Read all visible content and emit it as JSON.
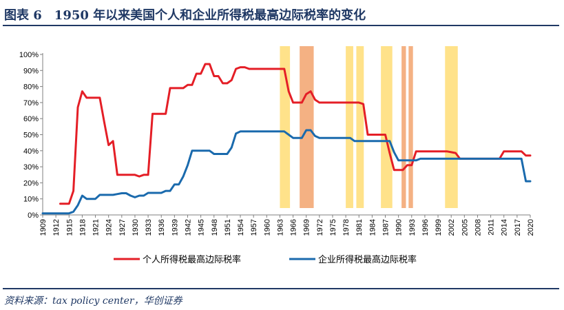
{
  "header": {
    "title": "图表 6　1950 年以来美国个人和企业所得税最高边际税率的变化"
  },
  "footer": {
    "source": "资料来源：tax policy center，华创证券"
  },
  "colors": {
    "title": "#1f3864",
    "individual": "#e41e26",
    "corporate": "#1a6aad",
    "recession_light": "#ffe28a",
    "recession_dark": "#f4b183"
  },
  "chart_data": {
    "type": "line",
    "xlim": [
      1909,
      2020
    ],
    "ylim": [
      0,
      100
    ],
    "x_ticks": [
      1909,
      1912,
      1915,
      1918,
      1921,
      1924,
      1927,
      1930,
      1933,
      1936,
      1939,
      1942,
      1945,
      1948,
      1951,
      1954,
      1957,
      1960,
      1963,
      1966,
      1969,
      1972,
      1975,
      1978,
      1981,
      1984,
      1987,
      1990,
      1993,
      1996,
      1999,
      2002,
      2005,
      2008,
      2011,
      2014,
      2017,
      2020
    ],
    "y_ticks": [
      "0%",
      "10%",
      "20%",
      "30%",
      "40%",
      "50%",
      "60%",
      "70%",
      "80%",
      "90%",
      "100%"
    ],
    "legend_position": "bottom",
    "shaded_periods": [
      {
        "start": 1963.0,
        "end": 1965.3,
        "shade": "light"
      },
      {
        "start": 1967.5,
        "end": 1970.7,
        "shade": "dark"
      },
      {
        "start": 1978.0,
        "end": 1979.7,
        "shade": "light"
      },
      {
        "start": 1980.4,
        "end": 1982.1,
        "shade": "light"
      },
      {
        "start": 1986.0,
        "end": 1988.6,
        "shade": "light"
      },
      {
        "start": 1990.7,
        "end": 1991.7,
        "shade": "dark"
      },
      {
        "start": 1992.3,
        "end": 1993.3,
        "shade": "dark"
      },
      {
        "start": 2000.6,
        "end": 2003.5,
        "shade": "light"
      }
    ],
    "series": [
      {
        "name": "个人所得税最高边际税率",
        "color_key": "individual",
        "points": [
          [
            1913,
            7
          ],
          [
            1915,
            7
          ],
          [
            1916,
            15
          ],
          [
            1917,
            67
          ],
          [
            1918,
            77
          ],
          [
            1919,
            73
          ],
          [
            1922,
            73
          ],
          [
            1923,
            58
          ],
          [
            1924,
            43.5
          ],
          [
            1925,
            46
          ],
          [
            1926,
            25
          ],
          [
            1930,
            25
          ],
          [
            1931,
            24
          ],
          [
            1932,
            25
          ],
          [
            1933,
            25
          ],
          [
            1934,
            63
          ],
          [
            1936,
            63
          ],
          [
            1937,
            63
          ],
          [
            1938,
            79
          ],
          [
            1941,
            79
          ],
          [
            1942,
            81
          ],
          [
            1943,
            81
          ],
          [
            1944,
            88
          ],
          [
            1945,
            88
          ],
          [
            1946,
            94
          ],
          [
            1947,
            94
          ],
          [
            1948,
            86.5
          ],
          [
            1949,
            86.5
          ],
          [
            1950,
            82
          ],
          [
            1951,
            82
          ],
          [
            1952,
            84
          ],
          [
            1953,
            91
          ],
          [
            1954,
            92
          ],
          [
            1955,
            92
          ],
          [
            1956,
            91
          ],
          [
            1964,
            91
          ],
          [
            1965,
            77
          ],
          [
            1966,
            70
          ],
          [
            1968,
            70
          ],
          [
            1969,
            75.3
          ],
          [
            1970,
            77
          ],
          [
            1971,
            71.8
          ],
          [
            1972,
            70
          ],
          [
            1981,
            70
          ],
          [
            1982,
            69.1
          ],
          [
            1983,
            50
          ],
          [
            1987,
            50
          ],
          [
            1988,
            38.5
          ],
          [
            1989,
            28
          ],
          [
            1991,
            28
          ],
          [
            1992,
            31
          ],
          [
            1993,
            31
          ],
          [
            1994,
            39.6
          ],
          [
            2001,
            39.6
          ],
          [
            2002,
            39.1
          ],
          [
            2003,
            38.6
          ],
          [
            2004,
            35
          ],
          [
            2013,
            35
          ],
          [
            2014,
            39.6
          ],
          [
            2018,
            39.6
          ],
          [
            2019,
            37
          ],
          [
            2020,
            37
          ]
        ]
      },
      {
        "name": "企业所得税最高边际税率",
        "color_key": "corporate",
        "points": [
          [
            1909,
            1
          ],
          [
            1915,
            1
          ],
          [
            1916,
            2
          ],
          [
            1917,
            6
          ],
          [
            1918,
            12
          ],
          [
            1919,
            10
          ],
          [
            1921,
            10
          ],
          [
            1922,
            12.5
          ],
          [
            1925,
            12.5
          ],
          [
            1926,
            13
          ],
          [
            1927,
            13.5
          ],
          [
            1928,
            13.5
          ],
          [
            1929,
            12
          ],
          [
            1930,
            11
          ],
          [
            1931,
            12
          ],
          [
            1932,
            12
          ],
          [
            1933,
            13.75
          ],
          [
            1936,
            13.75
          ],
          [
            1937,
            15
          ],
          [
            1938,
            15
          ],
          [
            1939,
            19
          ],
          [
            1940,
            19
          ],
          [
            1941,
            24
          ],
          [
            1942,
            31
          ],
          [
            1943,
            40
          ],
          [
            1947,
            40
          ],
          [
            1948,
            38
          ],
          [
            1951,
            38
          ],
          [
            1952,
            42
          ],
          [
            1953,
            50.7
          ],
          [
            1954,
            52
          ],
          [
            1964,
            52
          ],
          [
            1965,
            50
          ],
          [
            1966,
            48
          ],
          [
            1967,
            48
          ],
          [
            1968,
            48
          ],
          [
            1969,
            52.8
          ],
          [
            1970,
            52.8
          ],
          [
            1971,
            49.2
          ],
          [
            1972,
            48
          ],
          [
            1979,
            48
          ],
          [
            1980,
            46
          ],
          [
            1988,
            46
          ],
          [
            1989,
            39
          ],
          [
            1990,
            34
          ],
          [
            1994,
            34
          ],
          [
            1995,
            35
          ],
          [
            2018,
            35
          ],
          [
            2019,
            21
          ],
          [
            2021,
            21
          ]
        ]
      }
    ]
  }
}
